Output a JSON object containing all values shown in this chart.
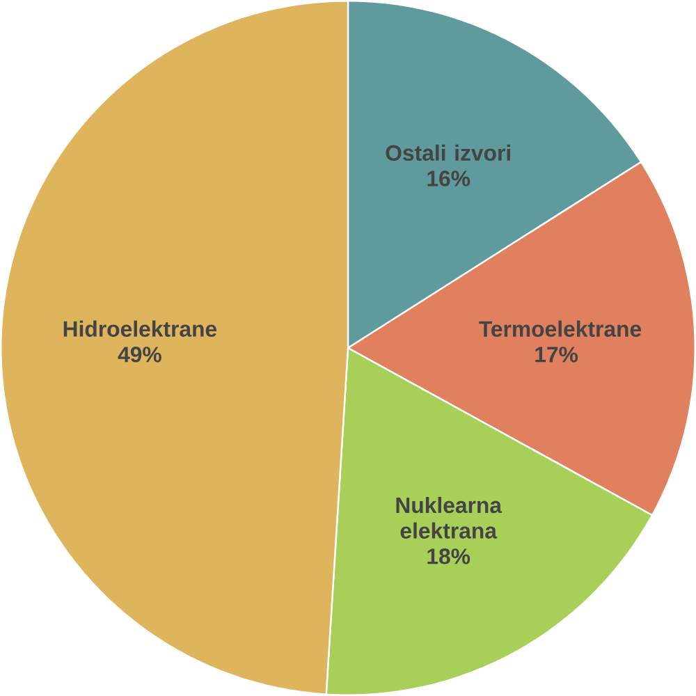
{
  "chart_data": {
    "type": "pie",
    "categories": [
      "Ostali izvori",
      "Termoelektrane",
      "Nuklearna elektrana",
      "Hidroelektrane"
    ],
    "values": [
      16,
      17,
      18,
      49
    ],
    "colors": [
      "#5f9b9d",
      "#e0805e",
      "#a8cf58",
      "#deb45c"
    ],
    "value_labels": [
      "16%",
      "17%",
      "18%",
      "49%"
    ]
  }
}
